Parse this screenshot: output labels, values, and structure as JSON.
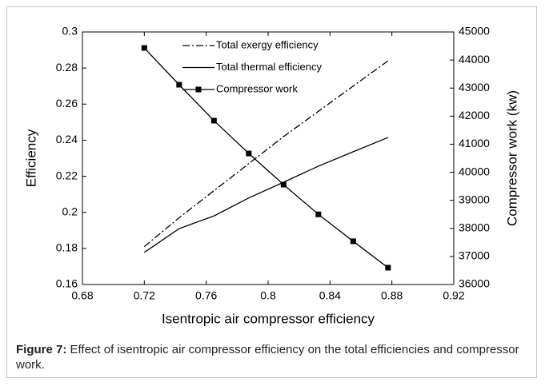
{
  "chart_data": {
    "type": "line",
    "x_label": "Isentropic air compressor efficiency",
    "y_label": "Efficiency",
    "y2_label": "Compressor work (kw)",
    "x": [
      0.72,
      0.7425,
      0.765,
      0.7875,
      0.81,
      0.8325,
      0.855,
      0.8775
    ],
    "series": [
      {
        "name": "Total exergy efficiency",
        "color": "#000000",
        "style": "dashdot",
        "axis": "y",
        "values": [
          0.181,
          0.197,
          0.212,
          0.227,
          0.242,
          0.256,
          0.27,
          0.284
        ]
      },
      {
        "name": "Total thermal efficiency",
        "color": "#000000",
        "style": "solid",
        "axis": "y",
        "values": [
          0.1778,
          0.191,
          0.198,
          0.208,
          0.2167,
          0.2256,
          0.2336,
          0.2415
        ]
      },
      {
        "name": "Compressor work",
        "color": "#000000",
        "style": "solid",
        "marker": "square",
        "axis": "y2",
        "values": [
          44430,
          43120,
          41840,
          40670,
          39560,
          38500,
          37540,
          36600
        ]
      }
    ],
    "xlim": [
      0.68,
      0.92
    ],
    "xticks": [
      0.68,
      0.72,
      0.76,
      0.8,
      0.84,
      0.88,
      0.92
    ],
    "ylim": [
      0.16,
      0.3
    ],
    "yticks": [
      0.16,
      0.18,
      0.2,
      0.22,
      0.24,
      0.26,
      0.28,
      0.3
    ],
    "y2lim": [
      36000,
      45000
    ],
    "y2ticks": [
      36000,
      37000,
      38000,
      39000,
      40000,
      41000,
      42000,
      43000,
      44000,
      45000
    ],
    "legend": "top"
  },
  "caption": {
    "label": "Figure 7:",
    "text": " Effect of isentropic air compressor efficiency on the total efficiencies and compressor work."
  }
}
